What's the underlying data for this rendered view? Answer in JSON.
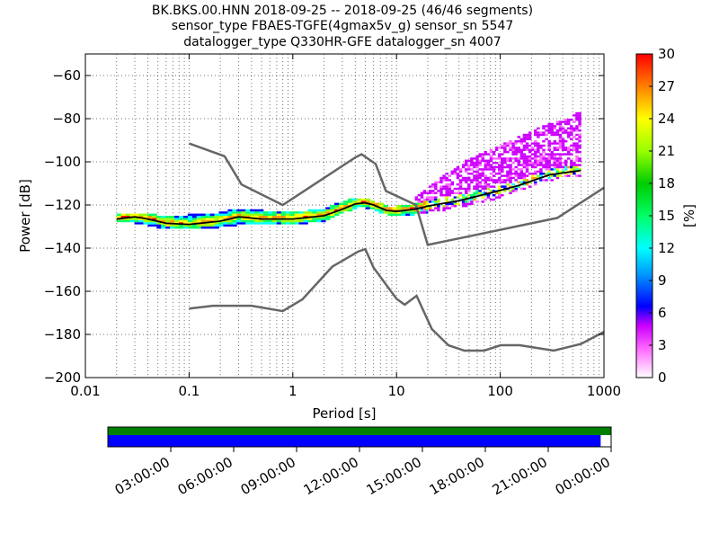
{
  "chart_data": {
    "type": "heatmap",
    "title_lines": [
      "BK.BKS.00.HNN   2018-09-25 -- 2018-09-25  (46/46 segments)",
      "sensor_type FBAES-TGFE(4gmax5v_g) sensor_sn 5547",
      "datalogger_type Q330HR-GFE datalogger_sn 4007"
    ],
    "xlabel": "Period [s]",
    "ylabel": "Power [dB]",
    "x_scale": "log",
    "xlim": [
      0.01,
      1000
    ],
    "ylim": [
      -200,
      -50
    ],
    "x_ticks": [
      {
        "value": 0.01,
        "label": "0.01"
      },
      {
        "value": 0.1,
        "label": "0.1"
      },
      {
        "value": 1,
        "label": "1"
      },
      {
        "value": 10,
        "label": "10"
      },
      {
        "value": 100,
        "label": "100"
      },
      {
        "value": 1000,
        "label": "1000"
      }
    ],
    "y_ticks": [
      {
        "value": -200,
        "label": "−200"
      },
      {
        "value": -180,
        "label": "−180"
      },
      {
        "value": -160,
        "label": "−160"
      },
      {
        "value": -140,
        "label": "−140"
      },
      {
        "value": -120,
        "label": "−120"
      },
      {
        "value": -100,
        "label": "−100"
      },
      {
        "value": -80,
        "label": "−80"
      },
      {
        "value": -60,
        "label": "−60"
      }
    ],
    "colorbar": {
      "label": "[%]",
      "range": [
        0,
        30
      ],
      "ticks": [
        {
          "value": 0,
          "label": "0"
        },
        {
          "value": 3,
          "label": "3"
        },
        {
          "value": 6,
          "label": "6"
        },
        {
          "value": 9,
          "label": "9"
        },
        {
          "value": 12,
          "label": "12"
        },
        {
          "value": 15,
          "label": "15"
        },
        {
          "value": 18,
          "label": "18"
        },
        {
          "value": 21,
          "label": "21"
        },
        {
          "value": 24,
          "label": "24"
        },
        {
          "value": 27,
          "label": "27"
        },
        {
          "value": 30,
          "label": "30"
        }
      ]
    },
    "high_noise_model": [
      [
        0.1,
        -91.5
      ],
      [
        0.22,
        -97.4
      ],
      [
        0.32,
        -110.5
      ],
      [
        0.8,
        -120
      ],
      [
        4,
        -98
      ],
      [
        4.6,
        -96.5
      ],
      [
        6.3,
        -101
      ],
      [
        7.9,
        -113.5
      ],
      [
        15.4,
        -120
      ],
      [
        20,
        -138.5
      ],
      [
        354.8,
        -126
      ],
      [
        1000,
        -112
      ]
    ],
    "low_noise_model": [
      [
        0.1,
        -168
      ],
      [
        0.17,
        -166.7
      ],
      [
        0.4,
        -166.7
      ],
      [
        0.8,
        -169.2
      ],
      [
        1.24,
        -163.7
      ],
      [
        2.4,
        -148.6
      ],
      [
        4.3,
        -141.5
      ],
      [
        5,
        -140.5
      ],
      [
        6,
        -149
      ],
      [
        10,
        -163.5
      ],
      [
        12,
        -166.2
      ],
      [
        15.6,
        -162.1
      ],
      [
        21.9,
        -177.5
      ],
      [
        31.6,
        -185
      ],
      [
        45,
        -187.5
      ],
      [
        70,
        -187.5
      ],
      [
        101,
        -185
      ],
      [
        154,
        -185
      ],
      [
        328,
        -187.5
      ],
      [
        600,
        -184.4
      ],
      [
        1000,
        -178.8
      ]
    ],
    "mean_psd": [
      [
        0.02,
        -126.5
      ],
      [
        0.03,
        -125.5
      ],
      [
        0.04,
        -126.5
      ],
      [
        0.06,
        -128.5
      ],
      [
        0.1,
        -129
      ],
      [
        0.2,
        -127.5
      ],
      [
        0.3,
        -125.5
      ],
      [
        0.5,
        -126.5
      ],
      [
        1,
        -126.5
      ],
      [
        2,
        -125
      ],
      [
        3,
        -122
      ],
      [
        4,
        -119.5
      ],
      [
        5,
        -119
      ],
      [
        6,
        -120
      ],
      [
        8,
        -122.5
      ],
      [
        10,
        -123
      ],
      [
        15,
        -122
      ],
      [
        20,
        -120.5
      ],
      [
        40,
        -118
      ],
      [
        80,
        -114.5
      ],
      [
        150,
        -111
      ],
      [
        300,
        -106
      ],
      [
        600,
        -104
      ]
    ],
    "spread_bands": [
      {
        "x": [
          0.02,
          0.03,
          0.05,
          0.1,
          0.2,
          0.3,
          0.5,
          1,
          2,
          4,
          5,
          8,
          10,
          15,
          20
        ],
        "low": [
          -128,
          -128,
          -130,
          -131,
          -130,
          -129,
          -129,
          -129,
          -127,
          -121,
          -121,
          -124,
          -125,
          -124,
          -123
        ],
        "high": [
          -125,
          -124,
          -125,
          -125,
          -124,
          -122,
          -123,
          -124,
          -122,
          -117,
          -117,
          -121,
          -121,
          -120,
          -118
        ]
      },
      {
        "x": [
          15,
          20,
          30,
          50,
          80,
          150,
          250,
          400,
          600
        ],
        "low": [
          -124,
          -123,
          -122,
          -120,
          -118,
          -113,
          -109,
          -107,
          -107
        ],
        "high": [
          -117,
          -112,
          -106,
          -99,
          -95,
          -89,
          -84,
          -81,
          -77
        ]
      }
    ],
    "time_axis": {
      "labels": [
        "03:00:00",
        "06:00:00",
        "09:00:00",
        "12:00:00",
        "15:00:00",
        "18:00:00",
        "21:00:00",
        "00:00:00"
      ],
      "range_hours": [
        0,
        24
      ],
      "ticks_hours": [
        3,
        6,
        9,
        12,
        15,
        18,
        21,
        24
      ],
      "data_coverage_hours": [
        0,
        24
      ],
      "psd_coverage_hours": [
        0,
        23.5
      ],
      "data_color": "#007f00",
      "psd_color": "#0000ff"
    },
    "model_line_color": "#666666"
  }
}
